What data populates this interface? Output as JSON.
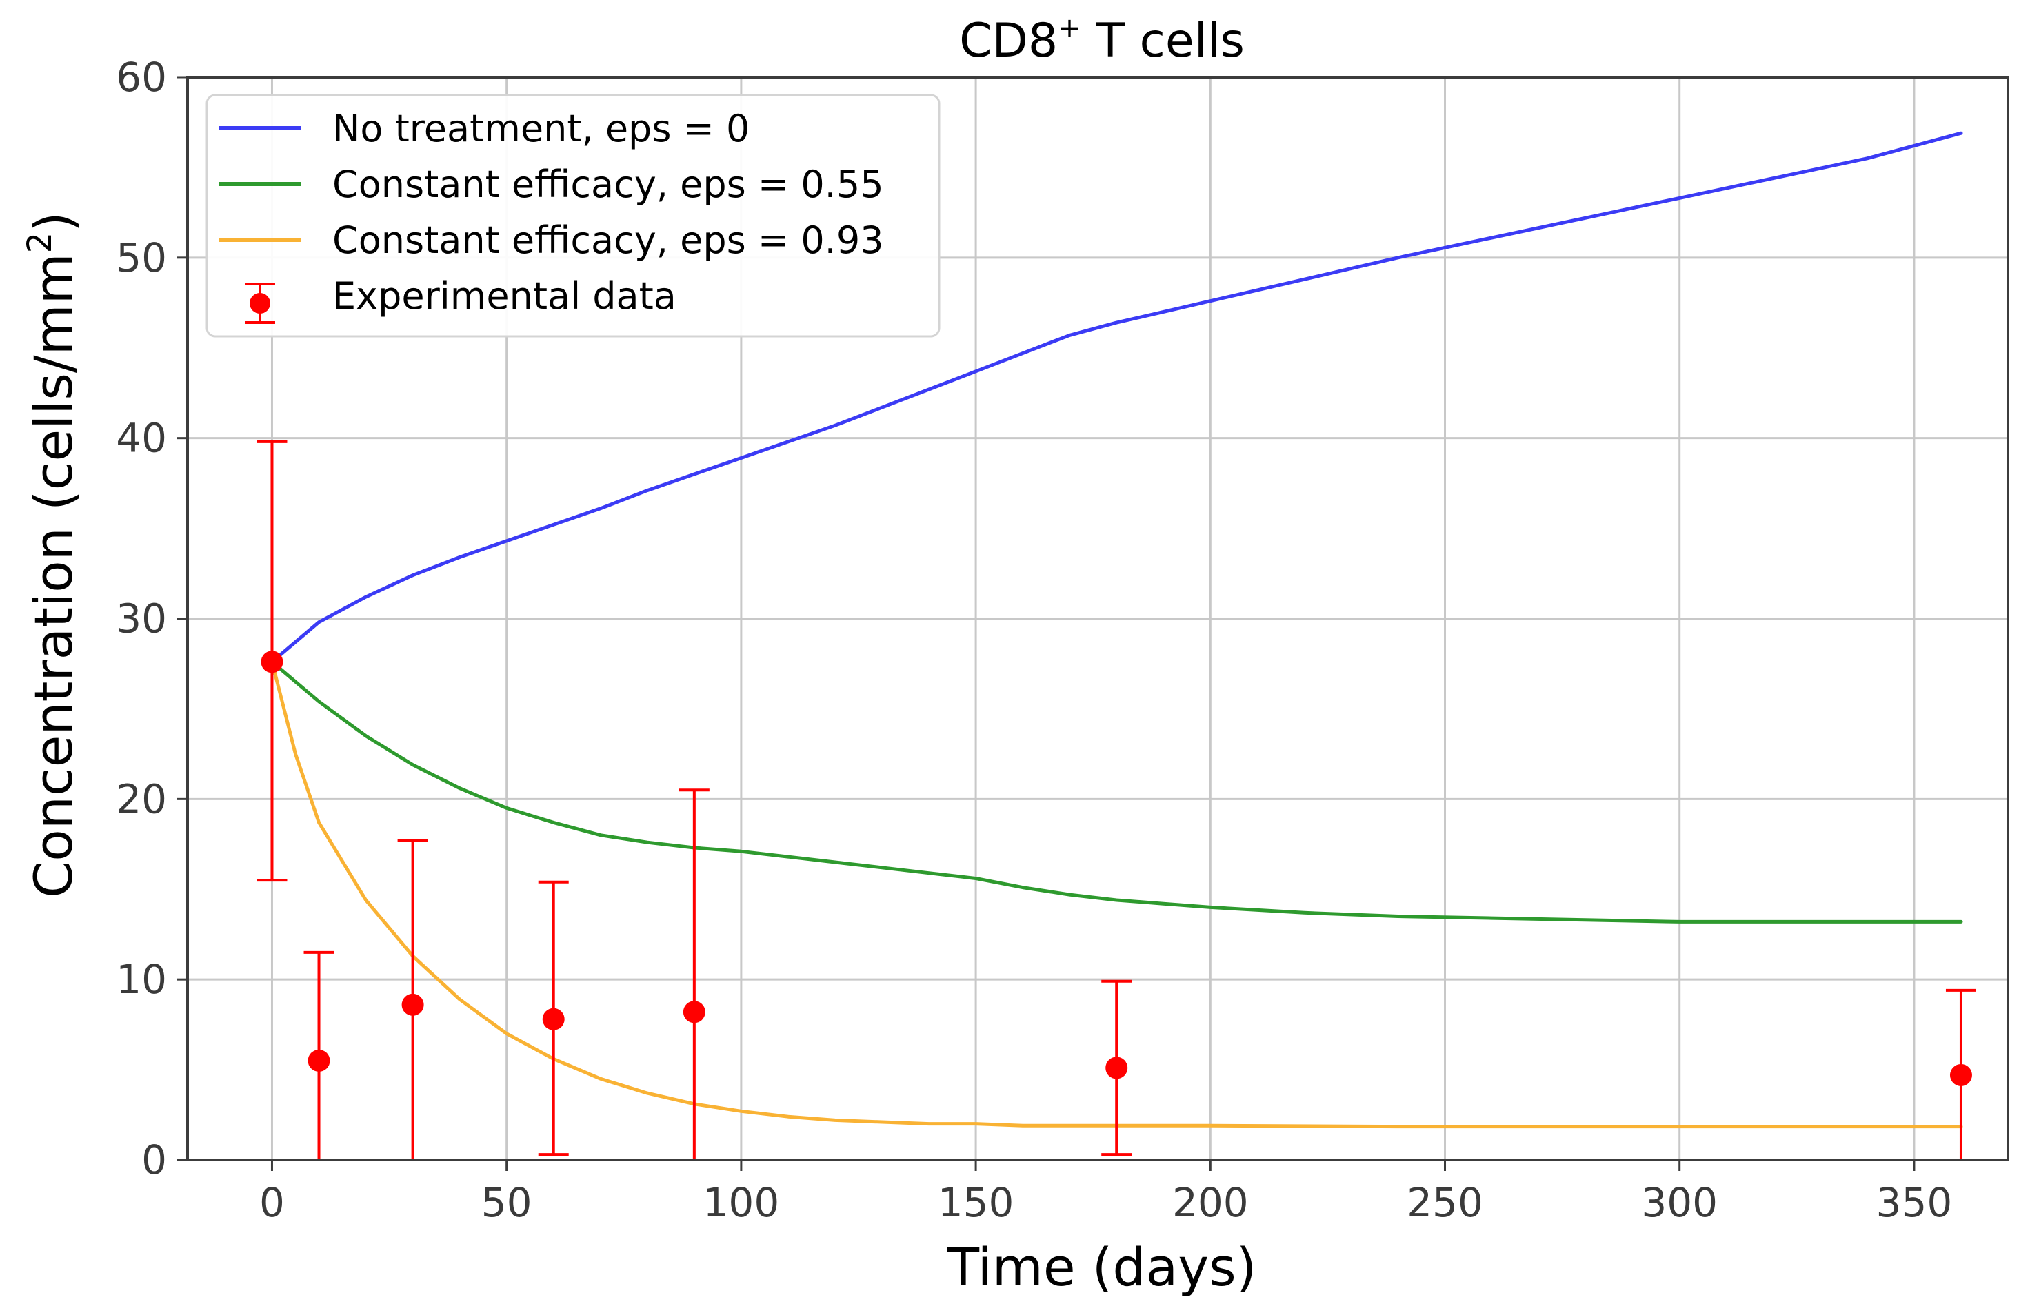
{
  "chart_data": {
    "type": "line",
    "title_main": "CD8",
    "title_sup": "+",
    "title_rest": " T cells",
    "xlabel": "Time (days)",
    "ylabel_main": "Concentration (cells/mm",
    "ylabel_sup": "2",
    "ylabel_end": ")",
    "xlim": [
      -18,
      370
    ],
    "ylim": [
      0,
      60
    ],
    "xticks": [
      0,
      50,
      100,
      150,
      200,
      250,
      300,
      350
    ],
    "yticks": [
      0,
      10,
      20,
      30,
      40,
      50,
      60
    ],
    "grid": true,
    "legend_position": "top-left",
    "series": [
      {
        "name": "No treatment, eps = 0",
        "color": "#3b3bf5",
        "x": [
          0,
          10,
          20,
          30,
          40,
          50,
          60,
          70,
          80,
          90,
          100,
          110,
          120,
          130,
          140,
          150,
          160,
          170,
          180,
          190,
          200,
          220,
          240,
          260,
          280,
          300,
          320,
          340,
          360
        ],
        "y": [
          27.6,
          29.8,
          31.2,
          32.4,
          33.4,
          34.3,
          35.2,
          36.1,
          37.1,
          38.0,
          38.9,
          39.8,
          40.7,
          41.7,
          42.7,
          43.7,
          44.7,
          45.7,
          46.4,
          47.0,
          47.6,
          48.8,
          50.0,
          51.1,
          52.2,
          53.3,
          54.4,
          55.5,
          56.9
        ]
      },
      {
        "name": "Constant efficacy, eps = 0.55",
        "color": "#2e9a2e",
        "x": [
          0,
          10,
          20,
          30,
          40,
          50,
          60,
          70,
          80,
          90,
          100,
          110,
          120,
          130,
          140,
          150,
          160,
          170,
          180,
          190,
          200,
          220,
          240,
          260,
          280,
          300,
          320,
          340,
          360
        ],
        "y": [
          27.6,
          25.4,
          23.5,
          21.9,
          20.6,
          19.5,
          18.7,
          18.0,
          17.6,
          17.3,
          17.1,
          16.8,
          16.5,
          16.2,
          15.9,
          15.6,
          15.1,
          14.7,
          14.4,
          14.2,
          14.0,
          13.7,
          13.5,
          13.4,
          13.3,
          13.2,
          13.2,
          13.2,
          13.2
        ]
      },
      {
        "name": "Constant efficacy, eps = 0.93",
        "color": "#f9b234",
        "x": [
          0,
          5,
          10,
          20,
          30,
          40,
          50,
          60,
          70,
          80,
          90,
          100,
          110,
          120,
          130,
          140,
          150,
          160,
          180,
          200,
          240,
          280,
          320,
          360
        ],
        "y": [
          27.6,
          22.5,
          18.7,
          14.4,
          11.3,
          8.9,
          7.0,
          5.6,
          4.5,
          3.7,
          3.1,
          2.7,
          2.4,
          2.2,
          2.1,
          2.0,
          2.0,
          1.9,
          1.9,
          1.9,
          1.85,
          1.85,
          1.85,
          1.85
        ]
      }
    ],
    "experimental": {
      "name": "Experimental data",
      "color": "#ff0000",
      "x": [
        0,
        10,
        30,
        60,
        90,
        180,
        360
      ],
      "y": [
        27.6,
        5.5,
        8.6,
        7.8,
        8.2,
        5.1,
        4.7
      ],
      "err_low": [
        15.5,
        0,
        0,
        0.3,
        0,
        0.3,
        0
      ],
      "err_high": [
        39.8,
        11.5,
        17.7,
        15.4,
        20.5,
        9.9,
        9.4
      ]
    }
  }
}
